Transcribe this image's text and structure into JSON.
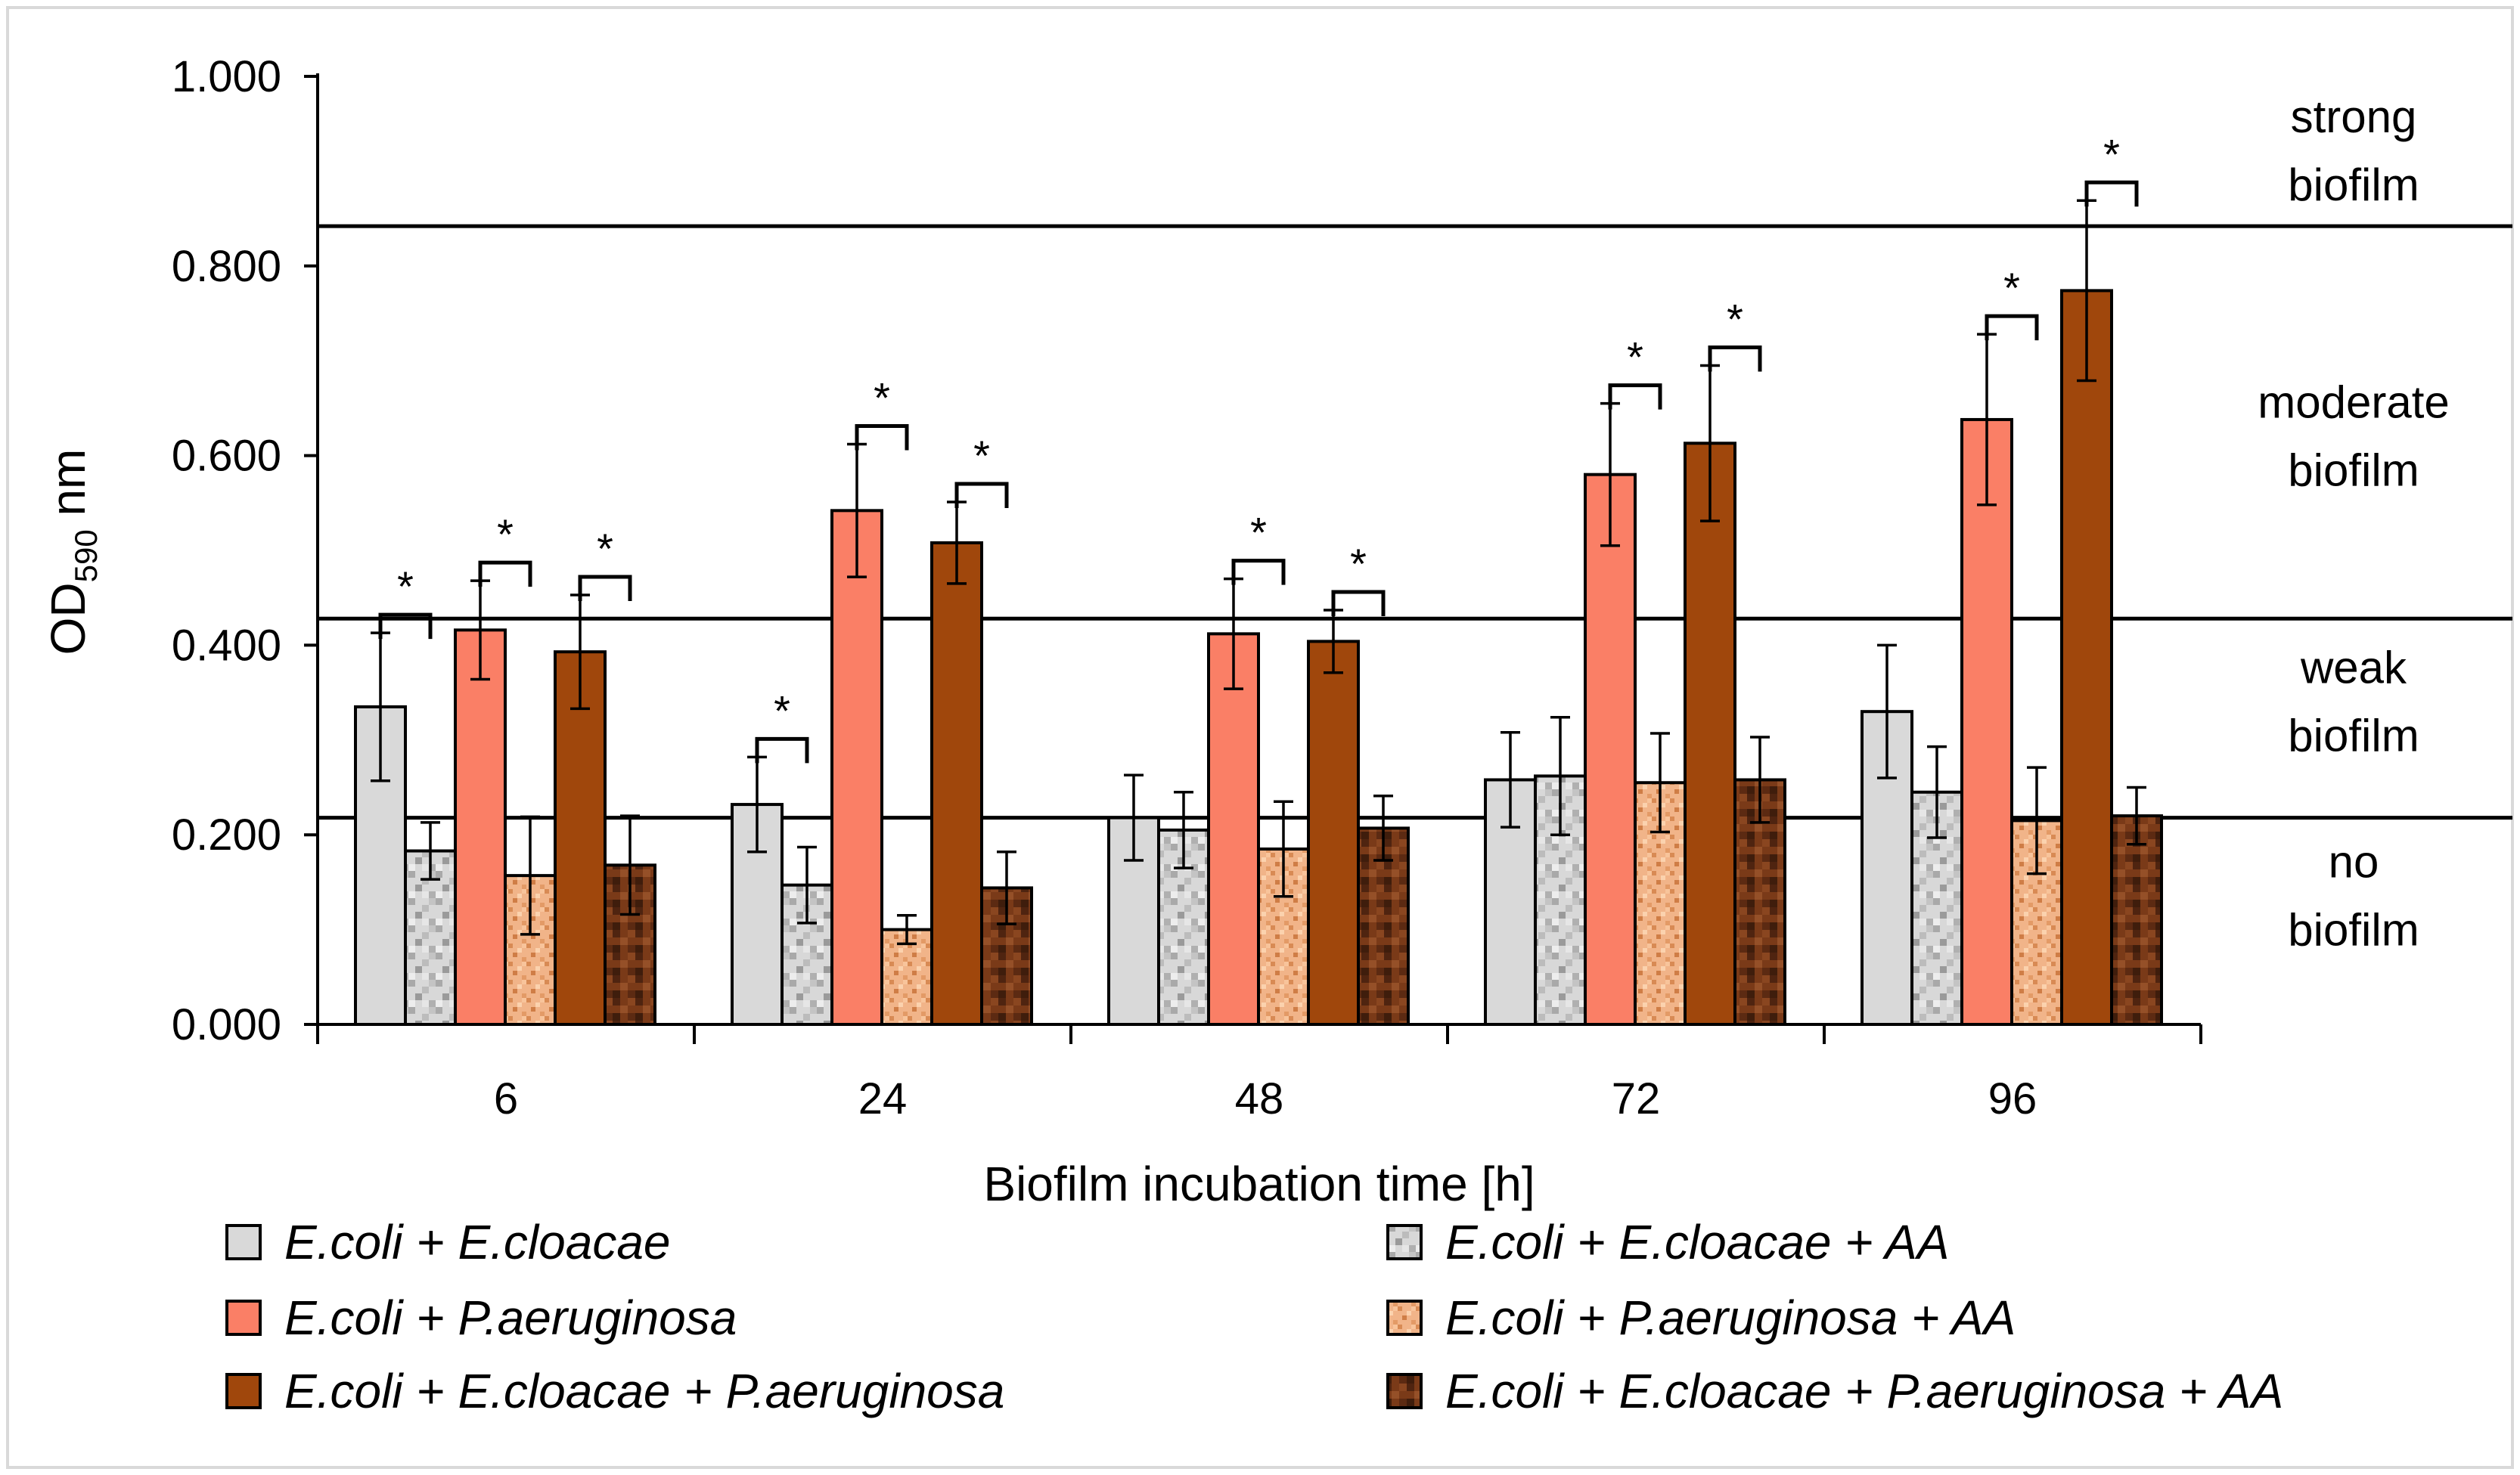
{
  "chart_data": {
    "type": "bar",
    "title": "",
    "xlabel": "Biofilm incubation time [h]",
    "ylabel_main": "OD",
    "ylabel_sub": "590",
    "ylabel_unit": " nm",
    "ylim": [
      0,
      1.0
    ],
    "yticks": [
      "0.000",
      "0.200",
      "0.400",
      "0.600",
      "0.800",
      "1.000"
    ],
    "ytick_values": [
      0,
      0.2,
      0.4,
      0.6,
      0.8,
      1.0
    ],
    "categories": [
      "6",
      "24",
      "48",
      "72",
      "96"
    ],
    "series": [
      {
        "name": "E.coli + E.cloacae",
        "color": "#d9d9d9",
        "pattern": "none",
        "values": [
          0.335,
          0.232,
          0.218,
          0.258,
          0.33
        ],
        "errors": [
          0.078,
          0.05,
          0.045,
          0.05,
          0.07
        ]
      },
      {
        "name": "E.coli + E.cloacae + AA",
        "color": "#cfcfcf",
        "pattern": "gray",
        "values": [
          0.183,
          0.147,
          0.205,
          0.262,
          0.245
        ],
        "errors": [
          0.03,
          0.04,
          0.04,
          0.062,
          0.048
        ]
      },
      {
        "name": "E.coli + P.aeruginosa",
        "color": "#fa7f66",
        "pattern": "none",
        "values": [
          0.416,
          0.542,
          0.412,
          0.58,
          0.638
        ],
        "errors": [
          0.052,
          0.07,
          0.058,
          0.075,
          0.09
        ]
      },
      {
        "name": "E.coli + P.aeruginosa + AA",
        "color": "#eba577",
        "pattern": "tan",
        "values": [
          0.157,
          0.1,
          0.185,
          0.255,
          0.215
        ],
        "errors": [
          0.062,
          0.015,
          0.05,
          0.052,
          0.056
        ]
      },
      {
        "name": "E.coli + E.cloacae + P.aeruginosa",
        "color": "#a0470c",
        "pattern": "none",
        "values": [
          0.393,
          0.508,
          0.404,
          0.613,
          0.774
        ],
        "errors": [
          0.06,
          0.043,
          0.033,
          0.082,
          0.095
        ]
      },
      {
        "name": "E.coli + E.cloacae + P.aeruginosa + AA",
        "color": "#6e3416",
        "pattern": "dark",
        "values": [
          0.168,
          0.144,
          0.207,
          0.258,
          0.22
        ],
        "errors": [
          0.052,
          0.038,
          0.034,
          0.045,
          0.03
        ]
      }
    ],
    "thresholds": [
      {
        "value": 0.218,
        "name": "no-biofilm-cutoff"
      },
      {
        "value": 0.428,
        "name": "weak-biofilm-cutoff"
      },
      {
        "value": 0.842,
        "name": "moderate-biofilm-cutoff"
      }
    ],
    "zones": [
      {
        "lines": [
          "strong",
          "biofilm"
        ],
        "center": 0.921
      },
      {
        "lines": [
          "moderate",
          "biofilm"
        ],
        "center": 0.62
      },
      {
        "lines": [
          "weak",
          "biofilm"
        ],
        "center": 0.34
      },
      {
        "lines": [
          "no",
          "biofilm"
        ],
        "center": 0.135
      }
    ],
    "significance": [
      {
        "group": 0,
        "a": 0,
        "b": 1,
        "label": "*"
      },
      {
        "group": 0,
        "a": 2,
        "b": 3,
        "label": "*"
      },
      {
        "group": 0,
        "a": 4,
        "b": 5,
        "label": "*"
      },
      {
        "group": 1,
        "a": 0,
        "b": 1,
        "label": "*"
      },
      {
        "group": 1,
        "a": 2,
        "b": 3,
        "label": "*"
      },
      {
        "group": 1,
        "a": 4,
        "b": 5,
        "label": "*"
      },
      {
        "group": 2,
        "a": 2,
        "b": 3,
        "label": "*"
      },
      {
        "group": 2,
        "a": 4,
        "b": 5,
        "label": "*"
      },
      {
        "group": 3,
        "a": 2,
        "b": 3,
        "label": "*"
      },
      {
        "group": 3,
        "a": 4,
        "b": 5,
        "label": "*"
      },
      {
        "group": 4,
        "a": 2,
        "b": 3,
        "label": "*"
      },
      {
        "group": 4,
        "a": 4,
        "b": 5,
        "label": "*"
      }
    ],
    "legend": [
      {
        "label": "E.coli + E.cloacae",
        "series": 0
      },
      {
        "label": "E.coli + E.cloacae + AA",
        "series": 1
      },
      {
        "label": "E.coli + P.aeruginosa",
        "series": 2
      },
      {
        "label": "E.coli + P.aeruginosa + AA",
        "series": 3
      },
      {
        "label": "E.coli + E.cloacae + P.aeruginosa",
        "series": 4
      },
      {
        "label": "E.coli + E.cloacae + P.aeruginosa + AA",
        "series": 5
      }
    ]
  }
}
